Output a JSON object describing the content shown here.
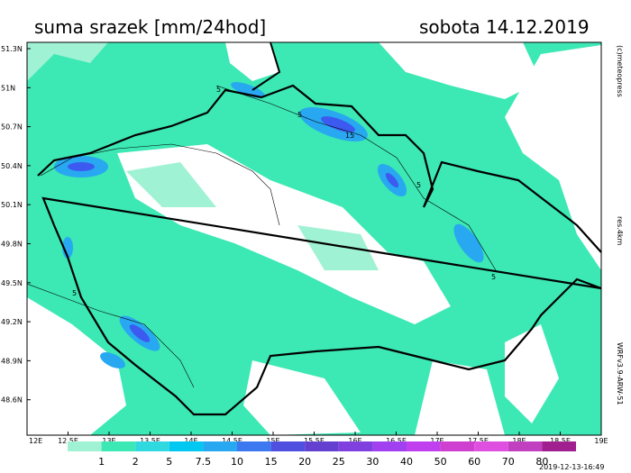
{
  "header": {
    "title": "suma srazek [mm/24hod]",
    "date": "sobota 14.12.2019"
  },
  "axes": {
    "lat_labels": [
      "51.3N",
      "51N",
      "50.7N",
      "50.4N",
      "50.1N",
      "49.8N",
      "49.5N",
      "49.2N",
      "48.9N",
      "48.6N"
    ],
    "lon_labels": [
      "12E",
      "12.5E",
      "13E",
      "13.5E",
      "14E",
      "14.5E",
      "15E",
      "15.5E",
      "16E",
      "16.5E",
      "17E",
      "17.5E",
      "18E",
      "18.5E",
      "19E"
    ]
  },
  "side_labels": {
    "credit": "(c)meteopress",
    "resolution": "res.4km",
    "model": "WRFv3.9-ARW-51"
  },
  "contour_labels": [
    "5",
    "5",
    "15",
    "5",
    "5",
    "5"
  ],
  "legend": {
    "labels": [
      "1",
      "2",
      "5",
      "7.5",
      "10",
      "15",
      "20",
      "25",
      "30",
      "40",
      "50",
      "60",
      "70",
      "80"
    ]
  },
  "footer": {
    "timestamp": "2019-12-13-16:49"
  }
}
